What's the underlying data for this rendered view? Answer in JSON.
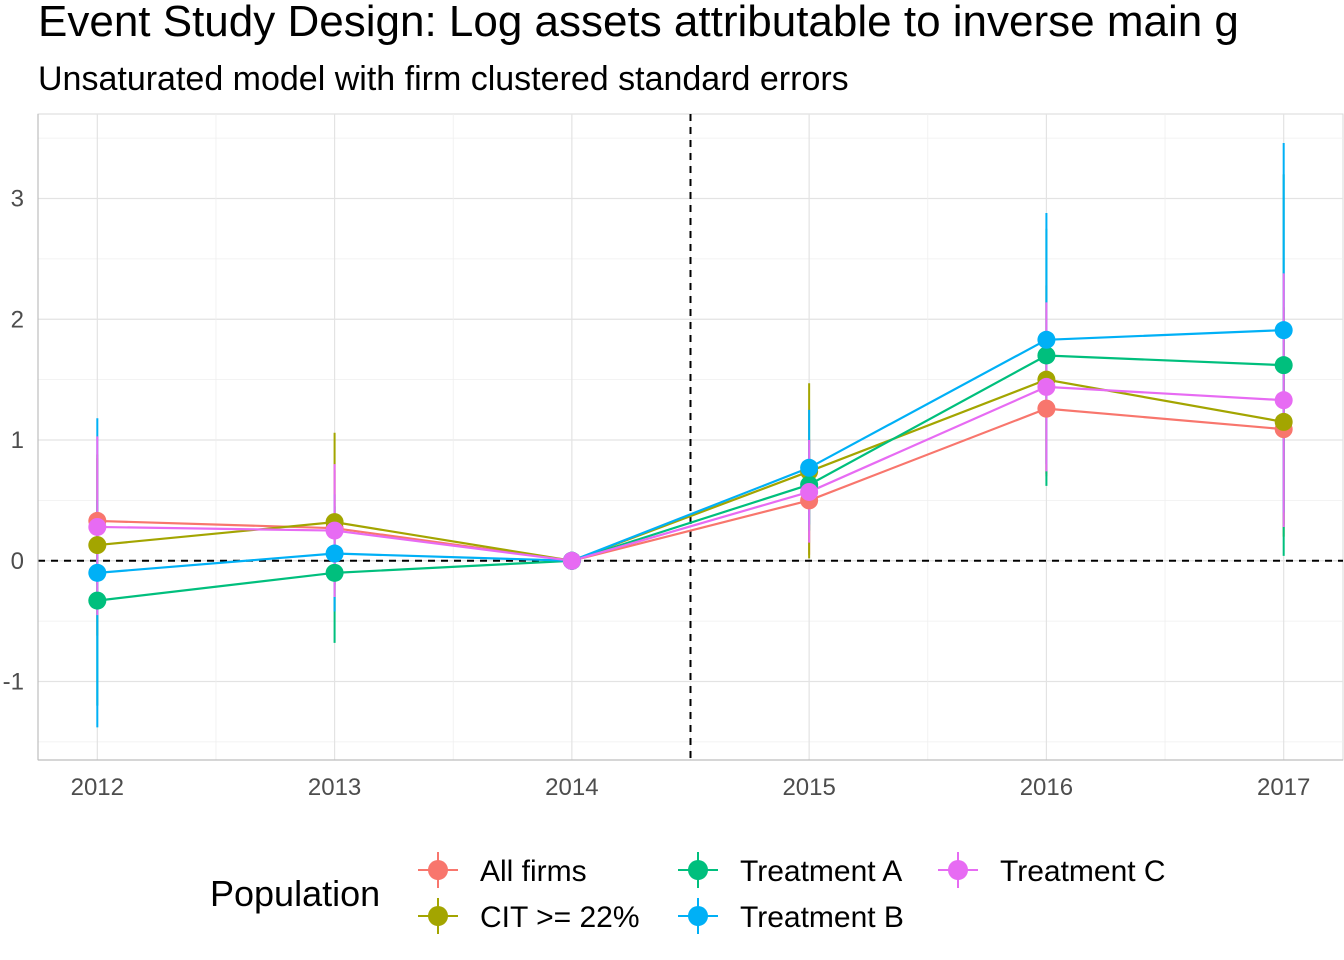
{
  "chart_data": {
    "type": "line",
    "title": "Event Study Design: Log assets attributable to inverse main g",
    "subtitle": "Unsaturated model with firm clustered standard errors",
    "xlabel": "",
    "ylabel": "",
    "x": [
      2012,
      2013,
      2014,
      2015,
      2016,
      2017
    ],
    "x_tick_labels": [
      "2012",
      "2013",
      "2014",
      "2015",
      "2016",
      "2017"
    ],
    "y_ticks": [
      -1,
      0,
      1,
      2,
      3
    ],
    "y_tick_labels": [
      "-1",
      "0",
      "1",
      "2",
      "3"
    ],
    "xlim": [
      2011.75,
      2017.25
    ],
    "ylim": [
      -1.65,
      3.7
    ],
    "grid": true,
    "reference_lines": {
      "horizontal_y": 0,
      "vertical_x": 2014.5,
      "style": "dashed"
    },
    "legend": {
      "title": "Population",
      "position": "bottom"
    },
    "series": [
      {
        "name": "All firms",
        "color": "#F8766D",
        "values": [
          0.33,
          0.27,
          0.0,
          0.5,
          1.26,
          1.09
        ],
        "ci_low": [
          -0.2,
          -0.2,
          0.0,
          0.05,
          0.7,
          0.3
        ],
        "ci_high": [
          0.85,
          0.75,
          0.0,
          1.0,
          1.9,
          1.9
        ]
      },
      {
        "name": "CIT >= 22%",
        "color": "#A3A500",
        "values": [
          0.13,
          0.32,
          0.0,
          0.74,
          1.5,
          1.15
        ],
        "ci_low": [
          -0.62,
          -0.42,
          0.0,
          0.02,
          0.72,
          0.2
        ],
        "ci_high": [
          0.88,
          1.06,
          0.0,
          1.47,
          2.28,
          2.1
        ]
      },
      {
        "name": "Treatment A",
        "color": "#00BF7D",
        "values": [
          -0.33,
          -0.1,
          0.0,
          0.63,
          1.7,
          1.62
        ],
        "ci_low": [
          -1.2,
          -0.68,
          0.0,
          0.25,
          0.62,
          0.04
        ],
        "ci_high": [
          0.5,
          0.45,
          0.0,
          1.0,
          2.75,
          3.2
        ]
      },
      {
        "name": "Treatment B",
        "color": "#00B0F6",
        "values": [
          -0.1,
          0.06,
          0.0,
          0.77,
          1.83,
          1.91
        ],
        "ci_low": [
          -1.38,
          -0.42,
          0.0,
          0.3,
          0.8,
          0.4
        ],
        "ci_high": [
          1.18,
          0.55,
          0.0,
          1.25,
          2.88,
          3.46
        ]
      },
      {
        "name": "Treatment C",
        "color": "#E76BF3",
        "values": [
          0.28,
          0.25,
          0.0,
          0.57,
          1.44,
          1.33
        ],
        "ci_low": [
          -0.45,
          -0.3,
          0.0,
          0.15,
          0.74,
          0.28
        ],
        "ci_high": [
          1.03,
          0.8,
          0.0,
          1.0,
          2.14,
          2.38
        ]
      }
    ]
  }
}
